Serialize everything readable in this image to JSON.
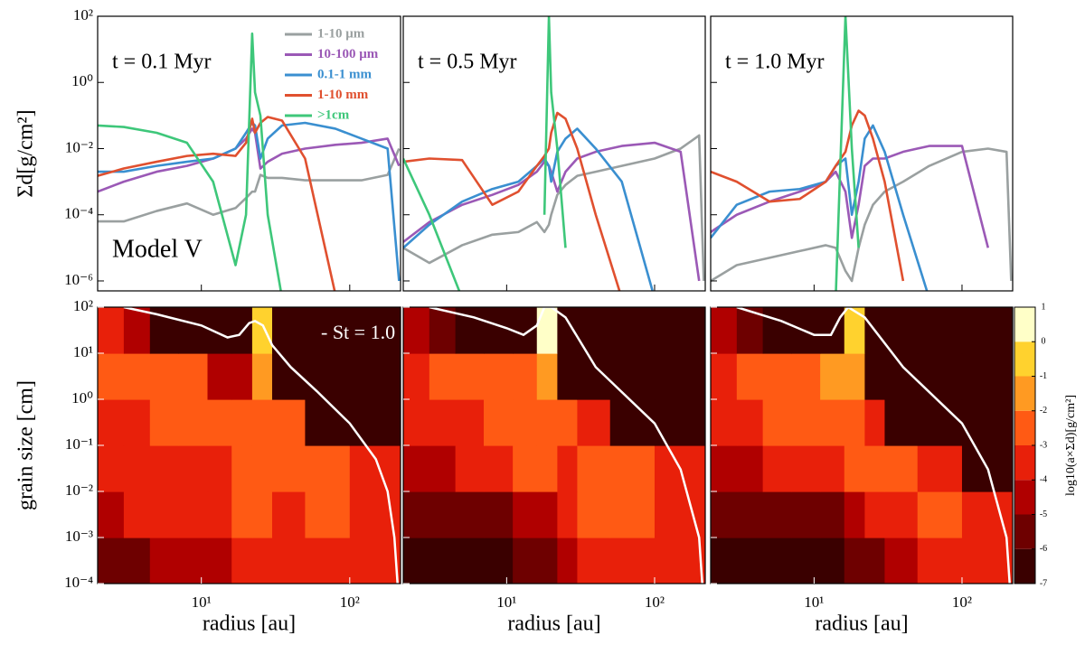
{
  "chart_data": [
    {
      "type": "line",
      "log_x": true,
      "log_y": true,
      "xlim": [
        2,
        220
      ],
      "ylim": [
        5e-07,
        100
      ],
      "annotation": "t = 0.1 Myr",
      "model": "Model V",
      "ylabel": "Σd[g/cm²]",
      "xticks": [
        10,
        100
      ],
      "yticks": [
        {
          "value": 100,
          "label": "10²"
        },
        {
          "value": 1,
          "label": "10⁰"
        },
        {
          "value": 0.01,
          "label": "10⁻²"
        },
        {
          "value": 0.0001,
          "label": "10⁻⁴"
        },
        {
          "value": 1e-06,
          "label": "10⁻⁶"
        }
      ],
      "x": [
        2,
        3,
        5,
        8,
        12,
        17,
        20,
        22,
        23,
        25,
        28,
        35,
        50,
        80,
        120,
        180,
        215
      ],
      "series": [
        {
          "name": "1-10 μm",
          "color": "#9aa0a0",
          "values": [
            6.3e-05,
            6.3e-05,
            0.00013,
            0.00022,
            0.0001,
            0.00016,
            0.00032,
            0.0005,
            0.0005,
            0.0016,
            0.0013,
            0.0013,
            0.0011,
            0.0011,
            0.0011,
            0.0016,
            0.01
          ]
        },
        {
          "name": "10-100 μm",
          "color": "#9b59b6",
          "values": [
            0.0005,
            0.001,
            0.002,
            0.003,
            0.005,
            0.01,
            0.02,
            0.04,
            0.03,
            0.0025,
            0.004,
            0.007,
            0.01,
            0.013,
            0.015,
            0.02,
            0.003
          ]
        },
        {
          "name": "0.1-1 mm",
          "color": "#3a8fd0",
          "values": [
            0.002,
            0.002,
            0.003,
            0.004,
            0.005,
            0.01,
            0.03,
            0.06,
            0.05,
            0.005,
            0.02,
            0.05,
            0.06,
            0.04,
            0.02,
            0.01,
            1e-06
          ]
        },
        {
          "name": "1-10 mm",
          "color": "#e0502f",
          "values": [
            0.0015,
            0.0025,
            0.004,
            0.006,
            0.007,
            0.006,
            0.015,
            0.08,
            0.03,
            0.06,
            0.09,
            0.07,
            0.005,
            4e-07,
            null,
            null,
            null
          ]
        },
        {
          "name": ">1cm",
          "color": "#3ec77a",
          "values": [
            0.05,
            0.045,
            0.03,
            0.015,
            0.001,
            3e-06,
            0.0001,
            30,
            0.5,
            0.1,
            0.0001,
            3e-07,
            null,
            null,
            null,
            null,
            null
          ]
        }
      ]
    },
    {
      "type": "line",
      "log_x": true,
      "log_y": true,
      "xlim": [
        2,
        220
      ],
      "ylim": [
        5e-07,
        100
      ],
      "annotation": "t = 0.5 Myr",
      "xticks": [
        10,
        100
      ],
      "yticks": [
        100,
        1,
        0.01,
        0.0001,
        1e-06
      ],
      "x": [
        2,
        3,
        5,
        8,
        12,
        16,
        18,
        19.3,
        20,
        22,
        25,
        30,
        40,
        60,
        100,
        150,
        200,
        215
      ],
      "series": [
        {
          "color": "#9aa0a0",
          "values": [
            1e-05,
            3.5e-06,
            1.2e-05,
            2.5e-05,
            3e-05,
            6e-05,
            3e-05,
            5e-05,
            0.0001,
            0.0004,
            0.0008,
            0.0015,
            0.002,
            0.003,
            0.005,
            0.01,
            0.025,
            1e-06
          ]
        },
        {
          "color": "#9b59b6",
          "values": [
            1.5e-05,
            6e-05,
            0.0002,
            0.0004,
            0.0008,
            0.002,
            0.004,
            0.003,
            0.002,
            0.0005,
            0.002,
            0.005,
            0.008,
            0.012,
            0.015,
            0.008,
            1e-06,
            null
          ]
        },
        {
          "color": "#3a8fd0",
          "values": [
            1e-05,
            5e-05,
            0.00025,
            0.0006,
            0.001,
            0.003,
            0.005,
            0.003,
            0.001,
            0.008,
            0.02,
            0.04,
            0.01,
            0.001,
            3e-07,
            null,
            null,
            null
          ]
        },
        {
          "color": "#e0502f",
          "values": [
            0.004,
            0.005,
            0.0045,
            0.0002,
            0.0005,
            0.003,
            0.006,
            0.01,
            0.03,
            0.12,
            0.08,
            0.01,
            0.0001,
            3e-07,
            null,
            null,
            null,
            null
          ]
        },
        {
          "color": "#3ec77a",
          "values": [
            0.005,
            0.0001,
            3e-07,
            null,
            null,
            null,
            0.0001,
            100,
            0.5,
            0.01,
            1e-05,
            null,
            null,
            null,
            null,
            null,
            null,
            null
          ]
        }
      ]
    },
    {
      "type": "line",
      "log_x": true,
      "log_y": true,
      "xlim": [
        2,
        220
      ],
      "ylim": [
        5e-07,
        100
      ],
      "annotation": "t = 1.0 Myr",
      "xticks": [
        10,
        100
      ],
      "yticks": [
        100,
        1,
        0.01,
        0.0001,
        1e-06
      ],
      "x": [
        2,
        3,
        5,
        8,
        12,
        14,
        16.3,
        18,
        20,
        22,
        25,
        30,
        40,
        60,
        100,
        150,
        200,
        215
      ],
      "series": [
        {
          "color": "#9aa0a0",
          "values": [
            1e-06,
            3e-06,
            5e-06,
            8e-06,
            1.2e-05,
            1e-05,
            2e-06,
            1e-06,
            1e-05,
            5e-05,
            0.0002,
            0.0005,
            0.001,
            0.003,
            0.008,
            0.01,
            0.008,
            1e-06
          ]
        },
        {
          "color": "#9b59b6",
          "values": [
            3e-05,
            0.0001,
            0.00025,
            0.0005,
            0.001,
            0.002,
            0.0005,
            2e-05,
            0.0002,
            0.003,
            0.005,
            0.005,
            0.008,
            0.012,
            0.012,
            1e-05,
            null,
            null
          ]
        },
        {
          "color": "#3a8fd0",
          "values": [
            2e-05,
            0.0002,
            0.0005,
            0.0006,
            0.001,
            0.003,
            0.005,
            0.0001,
            0.001,
            0.02,
            0.05,
            0.008,
            0.0001,
            3e-07,
            null,
            null,
            null,
            null
          ]
        },
        {
          "color": "#e0502f",
          "values": [
            0.002,
            0.001,
            0.00025,
            0.0003,
            0.001,
            0.003,
            0.008,
            0.05,
            0.14,
            0.1,
            0.02,
            0.001,
            1e-06,
            null,
            null,
            null,
            null,
            null
          ]
        },
        {
          "color": "#3ec77a",
          "values": [
            null,
            null,
            null,
            null,
            null,
            3e-07,
            100,
            0.01,
            1e-05,
            null,
            null,
            null,
            null,
            null,
            null,
            null,
            null,
            null
          ]
        }
      ]
    },
    {
      "type": "contour",
      "log_x": true,
      "log_y": true,
      "xlim": [
        2,
        220
      ],
      "ylim": [
        0.0001,
        100
      ],
      "xlabel": "radius [au]",
      "ylabel": "grain size [cm]",
      "xticks": [
        {
          "value": 10,
          "label": "10¹"
        },
        {
          "value": 100,
          "label": "10²"
        }
      ],
      "yticks": [
        {
          "value": 100,
          "label": "10²"
        },
        {
          "value": 10,
          "label": "10¹"
        },
        {
          "value": 1,
          "label": "10⁰"
        },
        {
          "value": 0.1,
          "label": "10⁻¹"
        },
        {
          "value": 0.01,
          "label": "10⁻²"
        },
        {
          "value": 0.001,
          "label": "10⁻³"
        },
        {
          "value": 0.0001,
          "label": "10⁻⁴"
        }
      ],
      "x_edges": [
        2,
        3,
        4.5,
        7,
        11,
        16,
        22,
        30,
        50,
        100,
        220
      ],
      "y_edges": [
        0.0001,
        0.001,
        0.01,
        0.1,
        1,
        10,
        100
      ],
      "z": [
        [
          -5.5,
          -5.5,
          -5,
          -4.5,
          -4.5,
          -4,
          -3.5,
          -3.5,
          -3.5,
          -3.5
        ],
        [
          -4.5,
          -4,
          -3.5,
          -3.5,
          -3.5,
          -3,
          -3,
          -3.5,
          -3,
          -3.5
        ],
        [
          -3.5,
          -3.5,
          -3.5,
          -3.5,
          -3.5,
          -2.5,
          -2.5,
          -3,
          -2.5,
          -4
        ],
        [
          -3.5,
          -3.5,
          -3,
          -2.5,
          -3,
          -3,
          -2.5,
          -2.5,
          -6.5,
          -6.5
        ],
        [
          -2.5,
          -2.5,
          -2.5,
          -3,
          -4.5,
          -4.5,
          -1.5,
          -6.5,
          -6.5,
          -6.5
        ],
        [
          -3.5,
          -4.5,
          -6.5,
          -6.5,
          -6.5,
          -6.5,
          -0.5,
          -6.5,
          -6.5,
          -6.5
        ]
      ],
      "curve": {
        "label": "- St = 1.0",
        "x": [
          3,
          5,
          10,
          15,
          18,
          21,
          23,
          26,
          30,
          40,
          60,
          100,
          150,
          180,
          200,
          210
        ],
        "values": [
          100,
          70,
          40,
          22,
          25,
          45,
          50,
          40,
          15,
          5,
          1.5,
          0.3,
          0.05,
          0.01,
          0.001,
          0.0001
        ]
      }
    },
    {
      "type": "contour",
      "log_x": true,
      "log_y": true,
      "xlim": [
        2,
        220
      ],
      "ylim": [
        0.0001,
        100
      ],
      "xlabel": "radius [au]",
      "xticks": [
        {
          "value": 10,
          "label": "10¹"
        },
        {
          "value": 100,
          "label": "10²"
        }
      ],
      "yticks": [
        100,
        10,
        1,
        0.1,
        0.01,
        0.001,
        0.0001
      ],
      "x_edges": [
        2,
        3,
        4.5,
        7,
        11,
        16,
        22,
        30,
        50,
        100,
        220
      ],
      "y_edges": [
        0.0001,
        0.001,
        0.01,
        0.1,
        1,
        10,
        100
      ],
      "z": [
        [
          -6.5,
          -6.5,
          -6.5,
          -6.5,
          -5.5,
          -5.5,
          -4.5,
          -3.5,
          -3.5,
          -3.5
        ],
        [
          -5.5,
          -5.5,
          -5.5,
          -5.5,
          -4.5,
          -4.5,
          -3.5,
          -3,
          -3,
          -3.5
        ],
        [
          -4.5,
          -4.5,
          -3.5,
          -3.5,
          -3,
          -2.5,
          -3.5,
          -3,
          -2.5,
          -4
        ],
        [
          -3.5,
          -3.5,
          -3.5,
          -3,
          -3,
          -3,
          -2.5,
          -3.5,
          -6.5,
          -6.5
        ],
        [
          -3.5,
          -3,
          -2.5,
          -3,
          -3,
          -1.5,
          -6.5,
          -6.5,
          -6.5,
          -6.5
        ],
        [
          -4.5,
          -5.5,
          -6.5,
          -6.5,
          -6.5,
          0.5,
          -6.5,
          -6.5,
          -6.5,
          -6.5
        ]
      ],
      "curve": {
        "x": [
          3,
          6,
          10,
          13,
          16,
          18,
          20,
          25,
          40,
          100,
          150,
          200,
          210
        ],
        "values": [
          100,
          60,
          35,
          25,
          40,
          100,
          100,
          60,
          5,
          0.3,
          0.03,
          0.001,
          0.0001
        ]
      }
    },
    {
      "type": "contour",
      "log_x": true,
      "log_y": true,
      "xlim": [
        2,
        220
      ],
      "ylim": [
        0.0001,
        100
      ],
      "xlabel": "radius [au]",
      "xticks": [
        {
          "value": 10,
          "label": "10¹"
        },
        {
          "value": 100,
          "label": "10²"
        }
      ],
      "yticks": [
        100,
        10,
        1,
        0.1,
        0.01,
        0.001,
        0.0001
      ],
      "x_edges": [
        2,
        3,
        4.5,
        7,
        11,
        16,
        22,
        30,
        50,
        100,
        220
      ],
      "y_edges": [
        0.0001,
        0.001,
        0.01,
        0.1,
        1,
        10,
        100
      ],
      "z": [
        [
          -6.5,
          -6.5,
          -6.5,
          -6.5,
          -6.5,
          -5.5,
          -5.5,
          -4.5,
          -3.5,
          -3.5
        ],
        [
          -5.5,
          -5.5,
          -5.5,
          -5.5,
          -5.5,
          -4.5,
          -3.5,
          -3.5,
          -2.5,
          -4
        ],
        [
          -4.5,
          -4.5,
          -4,
          -3.5,
          -3.5,
          -3,
          -2.5,
          -3,
          -4,
          -6.5
        ],
        [
          -3.5,
          -3.5,
          -3,
          -3,
          -3,
          -2.5,
          -3.5,
          -6.5,
          -6.5,
          -6.5
        ],
        [
          -3.5,
          -3,
          -2.5,
          -3,
          -2,
          -1.5,
          -6.5,
          -6.5,
          -6.5,
          -6.5
        ],
        [
          -4.5,
          -5.5,
          -6.5,
          -6.5,
          -6.5,
          -0.5,
          -6.5,
          -6.5,
          -6.5,
          -6.5
        ]
      ],
      "curve": {
        "x": [
          3,
          6,
          10,
          13,
          15,
          17,
          22,
          40,
          100,
          150,
          200,
          210
        ],
        "values": [
          100,
          50,
          25,
          25,
          60,
          100,
          60,
          5,
          0.3,
          0.03,
          0.001,
          0.0001
        ]
      },
      "colorbar": {
        "label": "log10(a×Σd)[g/cm²]",
        "levels": [
          -7,
          -6,
          -5,
          -4,
          -3,
          -2,
          -1,
          0,
          1
        ],
        "colors": [
          "#3a0000",
          "#6e0000",
          "#b00000",
          "#e8200a",
          "#ff5a14",
          "#ff9a22",
          "#ffd22e",
          "#ffffc8"
        ]
      }
    }
  ]
}
